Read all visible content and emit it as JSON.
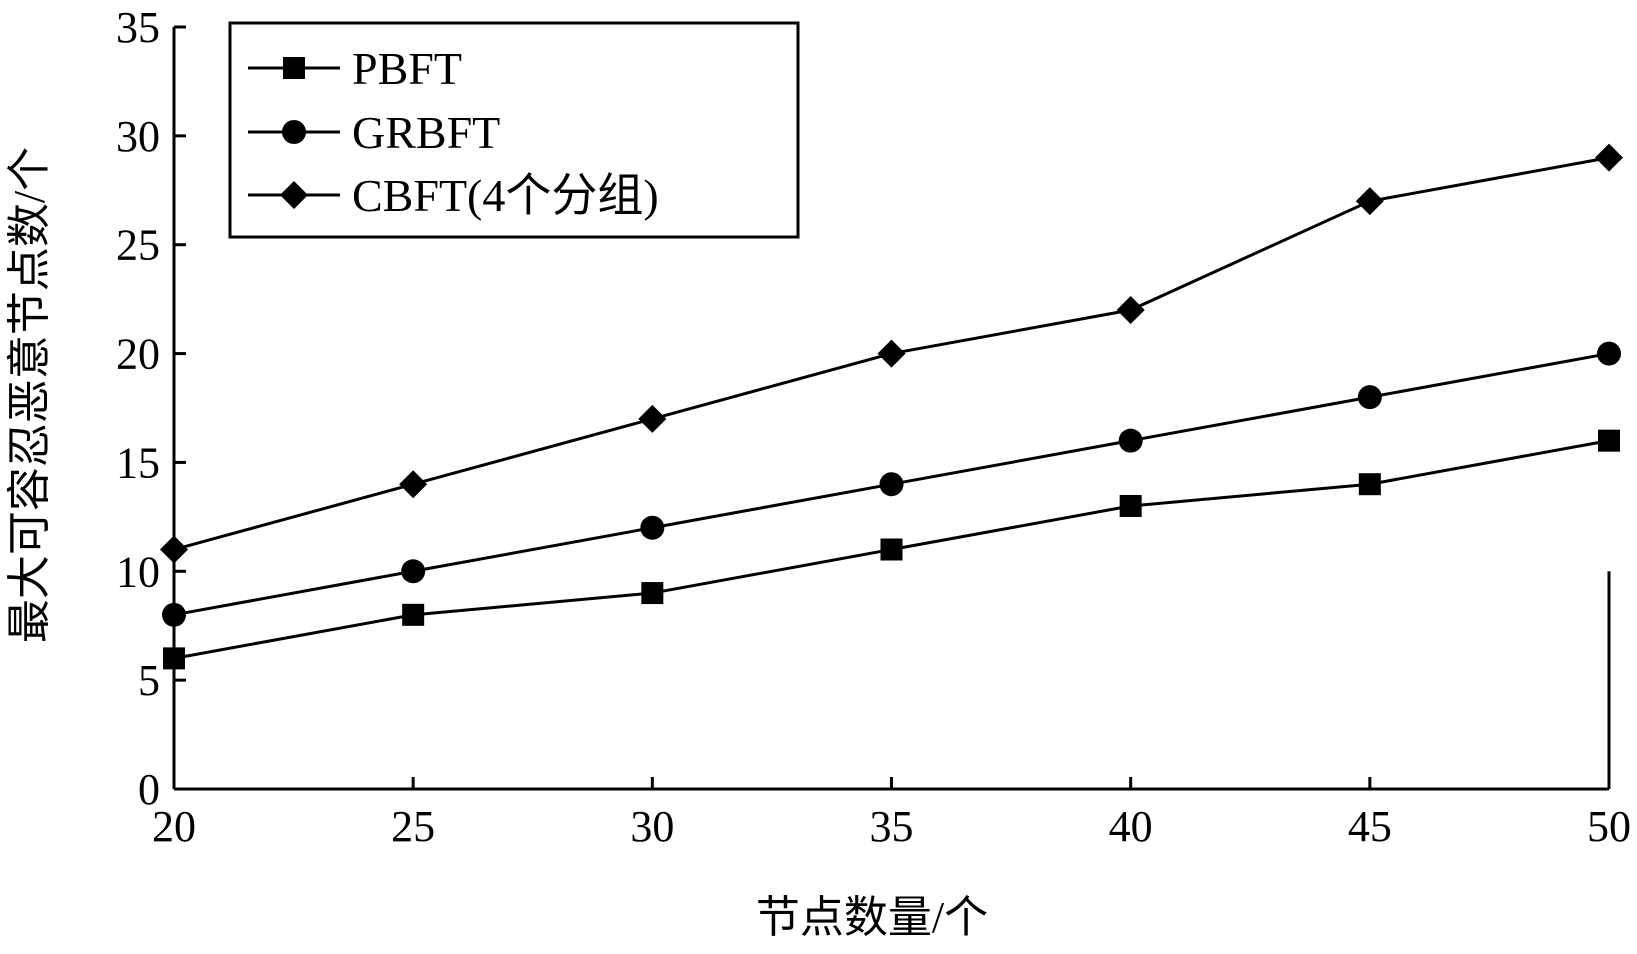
{
  "chart_data": {
    "type": "line",
    "title": "",
    "xlabel": "节点数量/个",
    "ylabel": "最大可容忍恶意节点数/个",
    "x": [
      20,
      25,
      30,
      35,
      40,
      45,
      50
    ],
    "xlim": [
      20,
      50
    ],
    "ylim": [
      0,
      35
    ],
    "xticks": [
      20,
      25,
      30,
      35,
      40,
      45,
      50
    ],
    "yticks": [
      0,
      5,
      10,
      15,
      20,
      25,
      30,
      35
    ],
    "grid": false,
    "legend_position": "top-left",
    "series": [
      {
        "name": "PBFT",
        "marker": "square",
        "color": "#000000",
        "values": [
          6,
          8,
          9,
          11,
          13,
          14,
          16
        ]
      },
      {
        "name": "GRBFT",
        "marker": "circle",
        "color": "#000000",
        "values": [
          8,
          10,
          12,
          14,
          16,
          18,
          20
        ]
      },
      {
        "name": "CBFT(4个分组)",
        "marker": "diamond",
        "color": "#000000",
        "values": [
          11,
          14,
          17,
          20,
          22,
          27,
          29
        ]
      }
    ]
  }
}
